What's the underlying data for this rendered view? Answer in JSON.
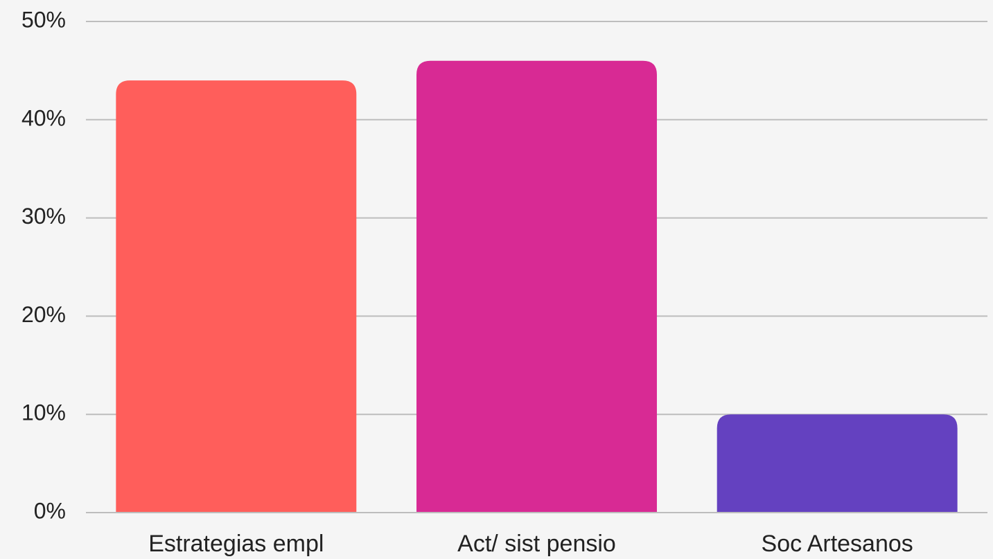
{
  "chart_data": {
    "type": "bar",
    "categories": [
      "Estrategias empl",
      "Act/ sist pensio",
      "Soc Artesanos"
    ],
    "values": [
      44,
      46,
      10
    ],
    "colors": [
      "#ff5e5b",
      "#d82a94",
      "#6441c0"
    ],
    "ylim": [
      0,
      50
    ],
    "yticks": [
      {
        "value": 0,
        "label": "0%"
      },
      {
        "value": 10,
        "label": "10%"
      },
      {
        "value": 20,
        "label": "20%"
      },
      {
        "value": 30,
        "label": "30%"
      },
      {
        "value": 40,
        "label": "40%"
      },
      {
        "value": 50,
        "label": "50%"
      }
    ],
    "grid": true
  }
}
